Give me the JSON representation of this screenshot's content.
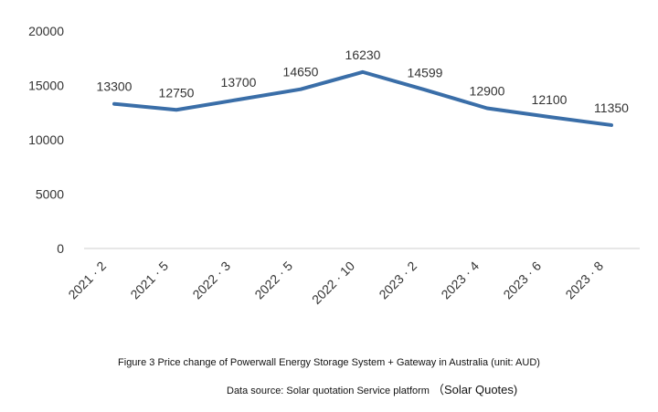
{
  "chart_data": {
    "type": "line",
    "categories": [
      "2021 · 2",
      "2021 · 5",
      "2022 · 3",
      "2022 · 5",
      "2022 · 10",
      "2023 · 2",
      "2023 · 4",
      "2023 · 6",
      "2023 · 8"
    ],
    "values": [
      13300,
      12750,
      13700,
      14650,
      16230,
      14599,
      12900,
      12100,
      11350
    ],
    "value_labels": [
      "13300",
      "12750",
      "13700",
      "14650",
      "16230",
      "14599",
      "12900",
      "12100",
      "11350"
    ],
    "y_ticks": [
      "0",
      "5000",
      "10000",
      "15000",
      "20000"
    ],
    "ylim": [
      0,
      20000
    ],
    "grid": false,
    "legend": "none",
    "line_color": "#3a6ea8"
  },
  "caption": "Figure 3 Price change of Powerwall Energy Storage System + Gateway in Australia (unit: AUD)",
  "source": {
    "prefix": "Data source: Solar quotation Service platform",
    "suffix": "（Solar Quotes)"
  }
}
